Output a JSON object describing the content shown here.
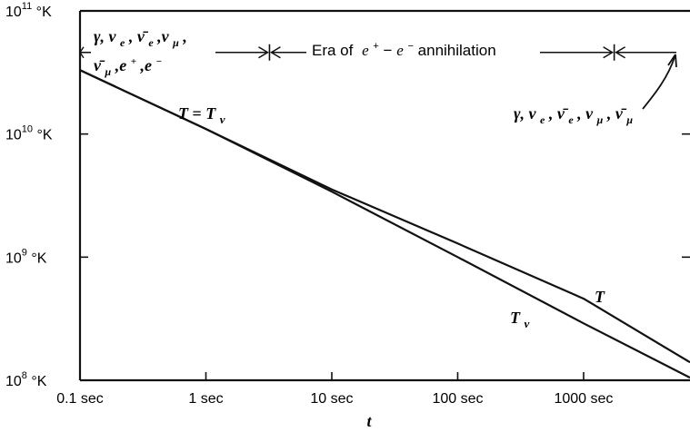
{
  "chart_data": {
    "type": "line",
    "x_scale": "log",
    "y_scale": "log",
    "xlim": [
      0.1,
      7000
    ],
    "ylim": [
      100000000,
      100000000000
    ],
    "x_ticks": [
      {
        "value": 0.1,
        "label": "0.1 sec"
      },
      {
        "value": 1,
        "label": "1 sec"
      },
      {
        "value": 10,
        "label": "10 sec"
      },
      {
        "value": 100,
        "label": "100 sec"
      },
      {
        "value": 1000,
        "label": "1000 sec"
      }
    ],
    "y_ticks": [
      {
        "value": 100000000,
        "base": "10",
        "exp": "8",
        "unit": " °K"
      },
      {
        "value": 1000000000,
        "base": "10",
        "exp": "9",
        "unit": " °K"
      },
      {
        "value": 10000000000,
        "base": "10",
        "exp": "10",
        "unit": " °K"
      },
      {
        "value": 100000000000,
        "base": "10",
        "exp": "11",
        "unit": " °K"
      }
    ],
    "xlabel": "t",
    "grid": false,
    "series": [
      {
        "name": "T",
        "x": [
          0.1,
          1,
          10,
          100,
          1000,
          7000
        ],
        "y": [
          33000000000,
          11000000000,
          3550000000,
          1290000000,
          460000000,
          140000000
        ]
      },
      {
        "name": "Tν",
        "x": [
          0.1,
          1,
          10,
          100,
          1000,
          7000
        ],
        "y": [
          33000000000,
          11000000000,
          3400000000,
          1000000000,
          290000000,
          105000000
        ]
      }
    ],
    "series_labels": {
      "equal": {
        "left": "T",
        "mid": " = ",
        "right": "T",
        "sub": "ν"
      },
      "T": "T",
      "T_nu": {
        "main": "T",
        "sub": "ν"
      }
    },
    "era_line_value": 46000000000,
    "era_markers": [
      3.2,
      1750
    ],
    "annotations": {
      "era_label": "Era of",
      "era_eplus": "e",
      "era_dash": " − ",
      "era_eminus": "e",
      "era_tail": " annihilation",
      "left_species_line1": "γ, ν",
      "left_species_line2": "ν̄",
      "right_species": "γ, ν",
      "sub_e": "e",
      "sub_mu": "μ",
      "plus": "+",
      "minus": "−"
    }
  }
}
